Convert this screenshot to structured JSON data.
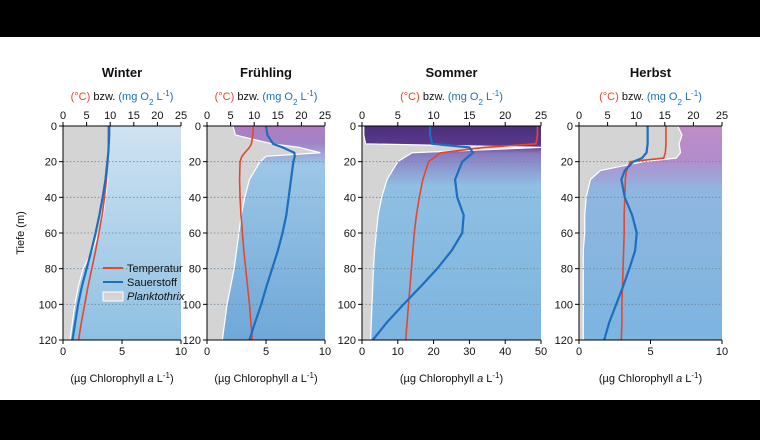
{
  "chart_data": [
    {
      "type": "line",
      "title": "Winter",
      "x2_label": [
        "(°C)",
        " bzw. ",
        "(mg O",
        "2",
        " L",
        "-1",
        ")"
      ],
      "x_label": [
        "(µg Chlorophyll ",
        "a",
        " L",
        "-1",
        ")"
      ],
      "y_label": "Tiefe (m)",
      "y": [
        0,
        5,
        10,
        15,
        20,
        30,
        40,
        50,
        60,
        70,
        80,
        90,
        100,
        110,
        120
      ],
      "ylim": [
        0,
        120
      ],
      "yticks": [
        0,
        20,
        40,
        60,
        80,
        100,
        120
      ],
      "y_inverted": true,
      "x2lim": [
        0,
        25
      ],
      "x2ticks": [
        0,
        5,
        10,
        15,
        20,
        25
      ],
      "xlim": [
        0,
        10
      ],
      "xticks": [
        0,
        5,
        10
      ],
      "grid": true,
      "legend": "lower right",
      "series": [
        {
          "name": "Temperatur",
          "color": "#e8452c",
          "axis": "x2",
          "values": [
            9.6,
            9.6,
            9.6,
            9.6,
            9.5,
            9.2,
            8.8,
            8.3,
            7.6,
            6.9,
            6.1,
            5.3,
            4.6,
            3.9,
            3.3
          ]
        },
        {
          "name": "Sauerstoff",
          "color": "#1a6fc0",
          "axis": "x2",
          "values": [
            9.8,
            9.8,
            9.7,
            9.6,
            9.4,
            9.0,
            8.4,
            7.7,
            6.9,
            6.0,
            5.0,
            4.0,
            3.2,
            2.6,
            2.0
          ]
        },
        {
          "name": "Planktothrix",
          "color": "#d4d4d4",
          "type": "area",
          "values": [
            3.8,
            3.9,
            3.8,
            3.9,
            3.7,
            3.8,
            3.6,
            3.4,
            3.0,
            2.5,
            1.7,
            1.3,
            1.0,
            0.8,
            0.6
          ]
        }
      ]
    },
    {
      "type": "line",
      "title": "Frühling",
      "x2_label": [
        "(°C)",
        " bzw. ",
        "(mg O",
        "2",
        " L",
        "-1",
        ")"
      ],
      "x_label": [
        "(µg Chlorophyll ",
        "a",
        " L",
        "-1",
        ")"
      ],
      "y": [
        0,
        5,
        10,
        12,
        15,
        17,
        20,
        30,
        40,
        50,
        60,
        70,
        80,
        90,
        100,
        110,
        120
      ],
      "ylim": [
        0,
        120
      ],
      "yticks": [
        0,
        20,
        40,
        60,
        80,
        100,
        120
      ],
      "y_inverted": true,
      "x2lim": [
        0,
        25
      ],
      "x2ticks": [
        0,
        5,
        10,
        15,
        20,
        25
      ],
      "xlim": [
        0,
        10
      ],
      "xticks": [
        0,
        5,
        10
      ],
      "grid": true,
      "series": [
        {
          "color": "#e8452c",
          "axis": "x2",
          "values": [
            9.8,
            9.7,
            9.4,
            9.0,
            8.0,
            7.4,
            7.0,
            6.9,
            7.0,
            7.2,
            7.5,
            7.8,
            8.2,
            8.6,
            9.0,
            9.3,
            9.6
          ]
        },
        {
          "color": "#1a6fc0",
          "axis": "x2",
          "values": [
            12.5,
            12.8,
            14,
            16,
            18.5,
            18.6,
            18.3,
            17.8,
            17.3,
            16.8,
            16.0,
            15.0,
            13.8,
            12.6,
            11.5,
            10.2,
            9.0
          ]
        },
        {
          "color": "#d4d4d4",
          "type": "area",
          "values": [
            2.2,
            2.4,
            5.5,
            7.8,
            9.6,
            5.0,
            4.5,
            3.6,
            3.2,
            2.9,
            2.7,
            2.5,
            2.3,
            2.0,
            1.7,
            1.5,
            1.3
          ]
        }
      ]
    },
    {
      "type": "line",
      "title": "Sommer",
      "x2_label": [
        "(°C)",
        " bzw. ",
        "(mg O",
        "2",
        " L",
        "-1",
        ")"
      ],
      "x_label": [
        "(µg Chlorophyll ",
        "a",
        " L",
        "-1",
        ")"
      ],
      "y": [
        0,
        5,
        10,
        12,
        15,
        20,
        30,
        40,
        50,
        60,
        70,
        80,
        90,
        100,
        110,
        120
      ],
      "ylim": [
        0,
        120
      ],
      "yticks": [
        0,
        20,
        40,
        60,
        80,
        100,
        120
      ],
      "y_inverted": true,
      "x2lim": [
        0,
        25
      ],
      "x2ticks": [
        0,
        5,
        10,
        15,
        20,
        25
      ],
      "xlim": [
        0,
        50
      ],
      "xticks": [
        0,
        10,
        20,
        30,
        40,
        50
      ],
      "grid": true,
      "series": [
        {
          "color": "#e8452c",
          "axis": "x2",
          "values": [
            24.5,
            24.5,
            24.3,
            17,
            11,
            9.3,
            8.5,
            8.0,
            7.6,
            7.3,
            7.1,
            6.9,
            6.7,
            6.5,
            6.3,
            6.1
          ]
        },
        {
          "color": "#1a6fc0",
          "axis": "x2",
          "values": [
            9.5,
            9.5,
            9.8,
            15,
            15.5,
            14.0,
            13.0,
            13.3,
            14.2,
            14.0,
            12.5,
            10.5,
            8.2,
            5.8,
            3.5,
            1.5
          ]
        },
        {
          "color": "#d4d4d4",
          "type": "area",
          "values": [
            0.5,
            0.5,
            1,
            50,
            14,
            10,
            7,
            5.5,
            4.5,
            4,
            3.5,
            3.2,
            3,
            2.8,
            2.6,
            2.4
          ]
        }
      ]
    },
    {
      "type": "line",
      "title": "Herbst",
      "x2_label": [
        "(°C)",
        " bzw. ",
        "(mg O",
        "2",
        " L",
        "-1",
        ")"
      ],
      "x_label": [
        "(µg Chlorophyll ",
        "a",
        " L",
        "-1",
        ")"
      ],
      "y": [
        0,
        5,
        10,
        15,
        18,
        20,
        25,
        30,
        40,
        50,
        60,
        70,
        80,
        90,
        100,
        110,
        120
      ],
      "ylim": [
        0,
        120
      ],
      "yticks": [
        0,
        20,
        40,
        60,
        80,
        100,
        120
      ],
      "y_inverted": true,
      "x2lim": [
        0,
        25
      ],
      "x2ticks": [
        0,
        5,
        10,
        15,
        20,
        25
      ],
      "xlim": [
        0,
        10
      ],
      "xticks": [
        0,
        5,
        10
      ],
      "grid": true,
      "series": [
        {
          "color": "#e8452c",
          "axis": "x2",
          "values": [
            15.2,
            15.2,
            15.2,
            15.1,
            14.8,
            9.0,
            8.3,
            8.1,
            8.0,
            7.9,
            7.9,
            7.8,
            7.7,
            7.6,
            7.5,
            7.5,
            7.4
          ]
        },
        {
          "color": "#1a6fc0",
          "axis": "x2",
          "values": [
            12.0,
            12.0,
            12.0,
            11.8,
            11.0,
            9.5,
            8.0,
            7.4,
            8.0,
            9.3,
            10.1,
            9.8,
            8.8,
            7.7,
            6.5,
            5.3,
            4.4
          ]
        },
        {
          "color": "#d4d4d4",
          "type": "area",
          "values": [
            6.9,
            7.2,
            7.0,
            7.1,
            6.8,
            4.5,
            1.5,
            0.8,
            0.5,
            0.4,
            0.4,
            0.3,
            0.3,
            0.3,
            0.3,
            0.3,
            0.3
          ]
        }
      ]
    }
  ]
}
